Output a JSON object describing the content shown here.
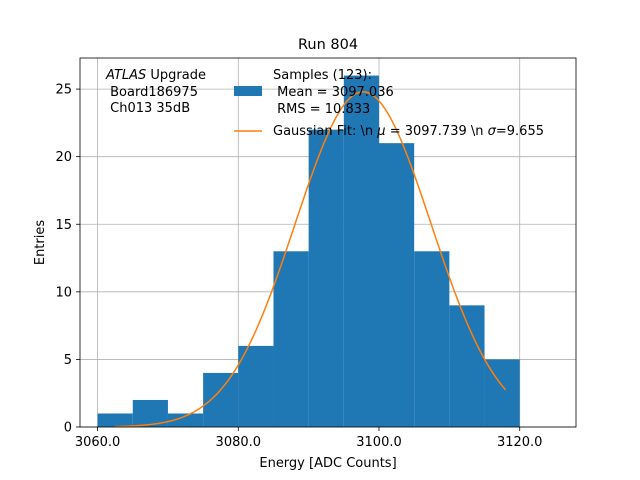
{
  "chart_data": {
    "type": "bar",
    "title": "Run 804",
    "xlabel": "Energy [ADC Counts]",
    "ylabel": "Entries",
    "xlim": [
      3057.5,
      3128.0
    ],
    "ylim": [
      0,
      27.3
    ],
    "x_ticks": [
      3060.0,
      3080.0,
      3100.0,
      3120.0
    ],
    "x_tick_labels": [
      "3060.0",
      "3080.0",
      "3100.0",
      "3120.0"
    ],
    "y_ticks": [
      0,
      5,
      10,
      15,
      20,
      25
    ],
    "y_tick_labels": [
      "0",
      "5",
      "10",
      "15",
      "20",
      "25"
    ],
    "grid": true,
    "bin_edges": [
      3060,
      3065,
      3070,
      3075,
      3080,
      3085,
      3090,
      3095,
      3100,
      3105,
      3110,
      3115,
      3120
    ],
    "values": [
      1,
      2,
      1,
      4,
      6,
      13,
      22,
      26,
      21,
      13,
      9,
      5
    ],
    "fit": {
      "mu": 3097.739,
      "sigma": 9.655,
      "amplitude": 24.8,
      "x_range": [
        3062.5,
        3118.0
      ]
    },
    "colors": {
      "bars": "#1f77b4",
      "fit_line": "#ff7f0e",
      "grid": "#b0b0b0"
    },
    "legend_position": "top-right",
    "legend": {
      "hist_label_lines": [
        "Samples (123):",
        " Mean = 3097.036",
        " RMS = 10.833"
      ],
      "fit_label_prefix": "Gaussian Fit: \\n ",
      "fit_mu_symbol": "μ",
      "fit_mu_value": " = 3097.739 \\n ",
      "fit_sigma_symbol": "σ",
      "fit_sigma_value": "=9.655"
    },
    "annotation": {
      "atlas_italic": "ATLAS",
      "atlas_suffix": " Upgrade",
      "line2": " Board186975",
      "line3": " Ch013 35dB"
    }
  }
}
